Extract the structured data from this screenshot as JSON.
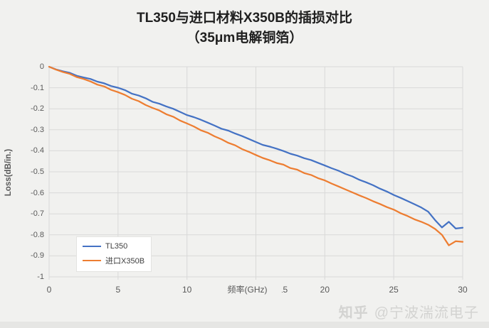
{
  "title": {
    "line1": "TL350与进口材料X350B的插损对比",
    "line2": "（35μm电解铜箔）"
  },
  "watermark": {
    "brand": "知乎",
    "handle": "@宁波湍流电子"
  },
  "colors": {
    "background": "#f1f1ef",
    "gridline": "#d9d9d8",
    "tick_text": "#595959",
    "title_text": "#1f1f1f",
    "series_tl350": "#4472C4",
    "series_x350b": "#ED7D31",
    "legend_bg": "#ffffff",
    "watermark_text": "#d3d3d1"
  },
  "chart_data": {
    "type": "line",
    "title": "TL350与进口材料X350B的插损对比",
    "subtitle": "（35μm电解铜箔）",
    "xlabel": "频率(GHz)",
    "ylabel": "Loss(dB/in.)",
    "xlim": [
      0,
      30
    ],
    "ylim": [
      -1,
      0
    ],
    "x_ticks": [
      0,
      5,
      10,
      15,
      20,
      25,
      30
    ],
    "x_tick_labels": [
      "0",
      "5",
      "10",
      "15",
      "20",
      "25",
      "30"
    ],
    "y_ticks": [
      0,
      -0.1,
      -0.2,
      -0.3,
      -0.4,
      -0.5,
      -0.6,
      -0.7,
      -0.8,
      -0.9,
      -1
    ],
    "y_tick_labels": [
      "0",
      "-0.1",
      "-0.2",
      "-0.3",
      "-0.4",
      "-0.5",
      "-0.6",
      "-0.7",
      "-0.8",
      "-0.9",
      "-1"
    ],
    "grid": true,
    "legend_position": "inside-bottom-left",
    "x": [
      0,
      0.5,
      1,
      1.5,
      2,
      2.5,
      3,
      3.5,
      4,
      4.5,
      5,
      5.5,
      6,
      6.5,
      7,
      7.5,
      8,
      8.5,
      9,
      9.5,
      10,
      10.5,
      11,
      11.5,
      12,
      12.5,
      13,
      13.5,
      14,
      14.5,
      15,
      15.5,
      16,
      16.5,
      17,
      17.5,
      18,
      18.5,
      19,
      19.5,
      20,
      20.5,
      21,
      21.5,
      22,
      22.5,
      23,
      23.5,
      24,
      24.5,
      25,
      25.5,
      26,
      26.5,
      27,
      27.5,
      28,
      28.5,
      29,
      29.5,
      30
    ],
    "series": [
      {
        "name": "TL350",
        "color": "#4472C4",
        "values": [
          0.0,
          -0.013,
          -0.022,
          -0.029,
          -0.043,
          -0.051,
          -0.058,
          -0.071,
          -0.079,
          -0.092,
          -0.1,
          -0.111,
          -0.128,
          -0.137,
          -0.15,
          -0.167,
          -0.176,
          -0.189,
          -0.2,
          -0.215,
          -0.23,
          -0.24,
          -0.252,
          -0.266,
          -0.28,
          -0.295,
          -0.304,
          -0.318,
          -0.33,
          -0.344,
          -0.358,
          -0.372,
          -0.38,
          -0.39,
          -0.401,
          -0.414,
          -0.423,
          -0.435,
          -0.444,
          -0.457,
          -0.47,
          -0.483,
          -0.495,
          -0.51,
          -0.522,
          -0.538,
          -0.55,
          -0.564,
          -0.58,
          -0.594,
          -0.61,
          -0.624,
          -0.639,
          -0.654,
          -0.67,
          -0.69,
          -0.73,
          -0.765,
          -0.738,
          -0.77,
          -0.766
        ]
      },
      {
        "name": "进口X350B",
        "color": "#ED7D31",
        "values": [
          0.0,
          -0.014,
          -0.025,
          -0.034,
          -0.049,
          -0.058,
          -0.07,
          -0.085,
          -0.094,
          -0.11,
          -0.121,
          -0.134,
          -0.152,
          -0.164,
          -0.182,
          -0.196,
          -0.208,
          -0.226,
          -0.238,
          -0.256,
          -0.27,
          -0.284,
          -0.302,
          -0.314,
          -0.331,
          -0.345,
          -0.362,
          -0.374,
          -0.392,
          -0.405,
          -0.42,
          -0.434,
          -0.445,
          -0.458,
          -0.466,
          -0.482,
          -0.49,
          -0.506,
          -0.515,
          -0.53,
          -0.541,
          -0.556,
          -0.57,
          -0.584,
          -0.598,
          -0.612,
          -0.625,
          -0.64,
          -0.653,
          -0.668,
          -0.68,
          -0.697,
          -0.71,
          -0.726,
          -0.738,
          -0.752,
          -0.772,
          -0.8,
          -0.85,
          -0.83,
          -0.833
        ]
      }
    ]
  },
  "legend": {
    "items": [
      {
        "label": "TL350",
        "color": "#4472C4"
      },
      {
        "label": "进口X350B",
        "color": "#ED7D31"
      }
    ]
  }
}
